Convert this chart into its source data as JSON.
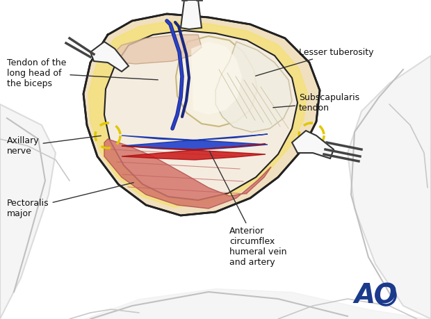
{
  "background_color": "#ffffff",
  "fig_width": 6.2,
  "fig_height": 4.59,
  "dpi": 100,
  "labels": {
    "tendon_biceps": "Tendon of the\nlong head of\nthe biceps",
    "axillary_nerve": "Axillary\nnerve",
    "pectoralis_major": "Pectoralis\nmajor",
    "lesser_tuberosity": "Lesser tuberosity",
    "subscapularis_tendon": "Subscapularis\ntendon",
    "anterior_circumflex": "Anterior\ncircumflex\nhumeral vein\nand artery",
    "ao_logo": "AO"
  },
  "colors": {
    "background": "#ffffff",
    "skin_outer": "#e8d5b0",
    "skin_fill": "#f0e0c0",
    "fat_yellow": "#f5e070",
    "muscle_red": "#d4756b",
    "muscle_light": "#e8a090",
    "muscle_pink": "#e8b0a0",
    "tendon_white": "#f0f0f0",
    "bone_cream": "#f0ead0",
    "artery_red": "#cc2020",
    "vein_blue": "#2040cc",
    "nerve_yellow": "#e8d800",
    "retractor_gray": "#888888",
    "outline_dark": "#222222",
    "line_gray": "#999999",
    "label_black": "#111111",
    "ao_blue": "#1a3a8c",
    "body_gray": "#c0c0c0",
    "dashed_yellow": "#e0c800"
  }
}
